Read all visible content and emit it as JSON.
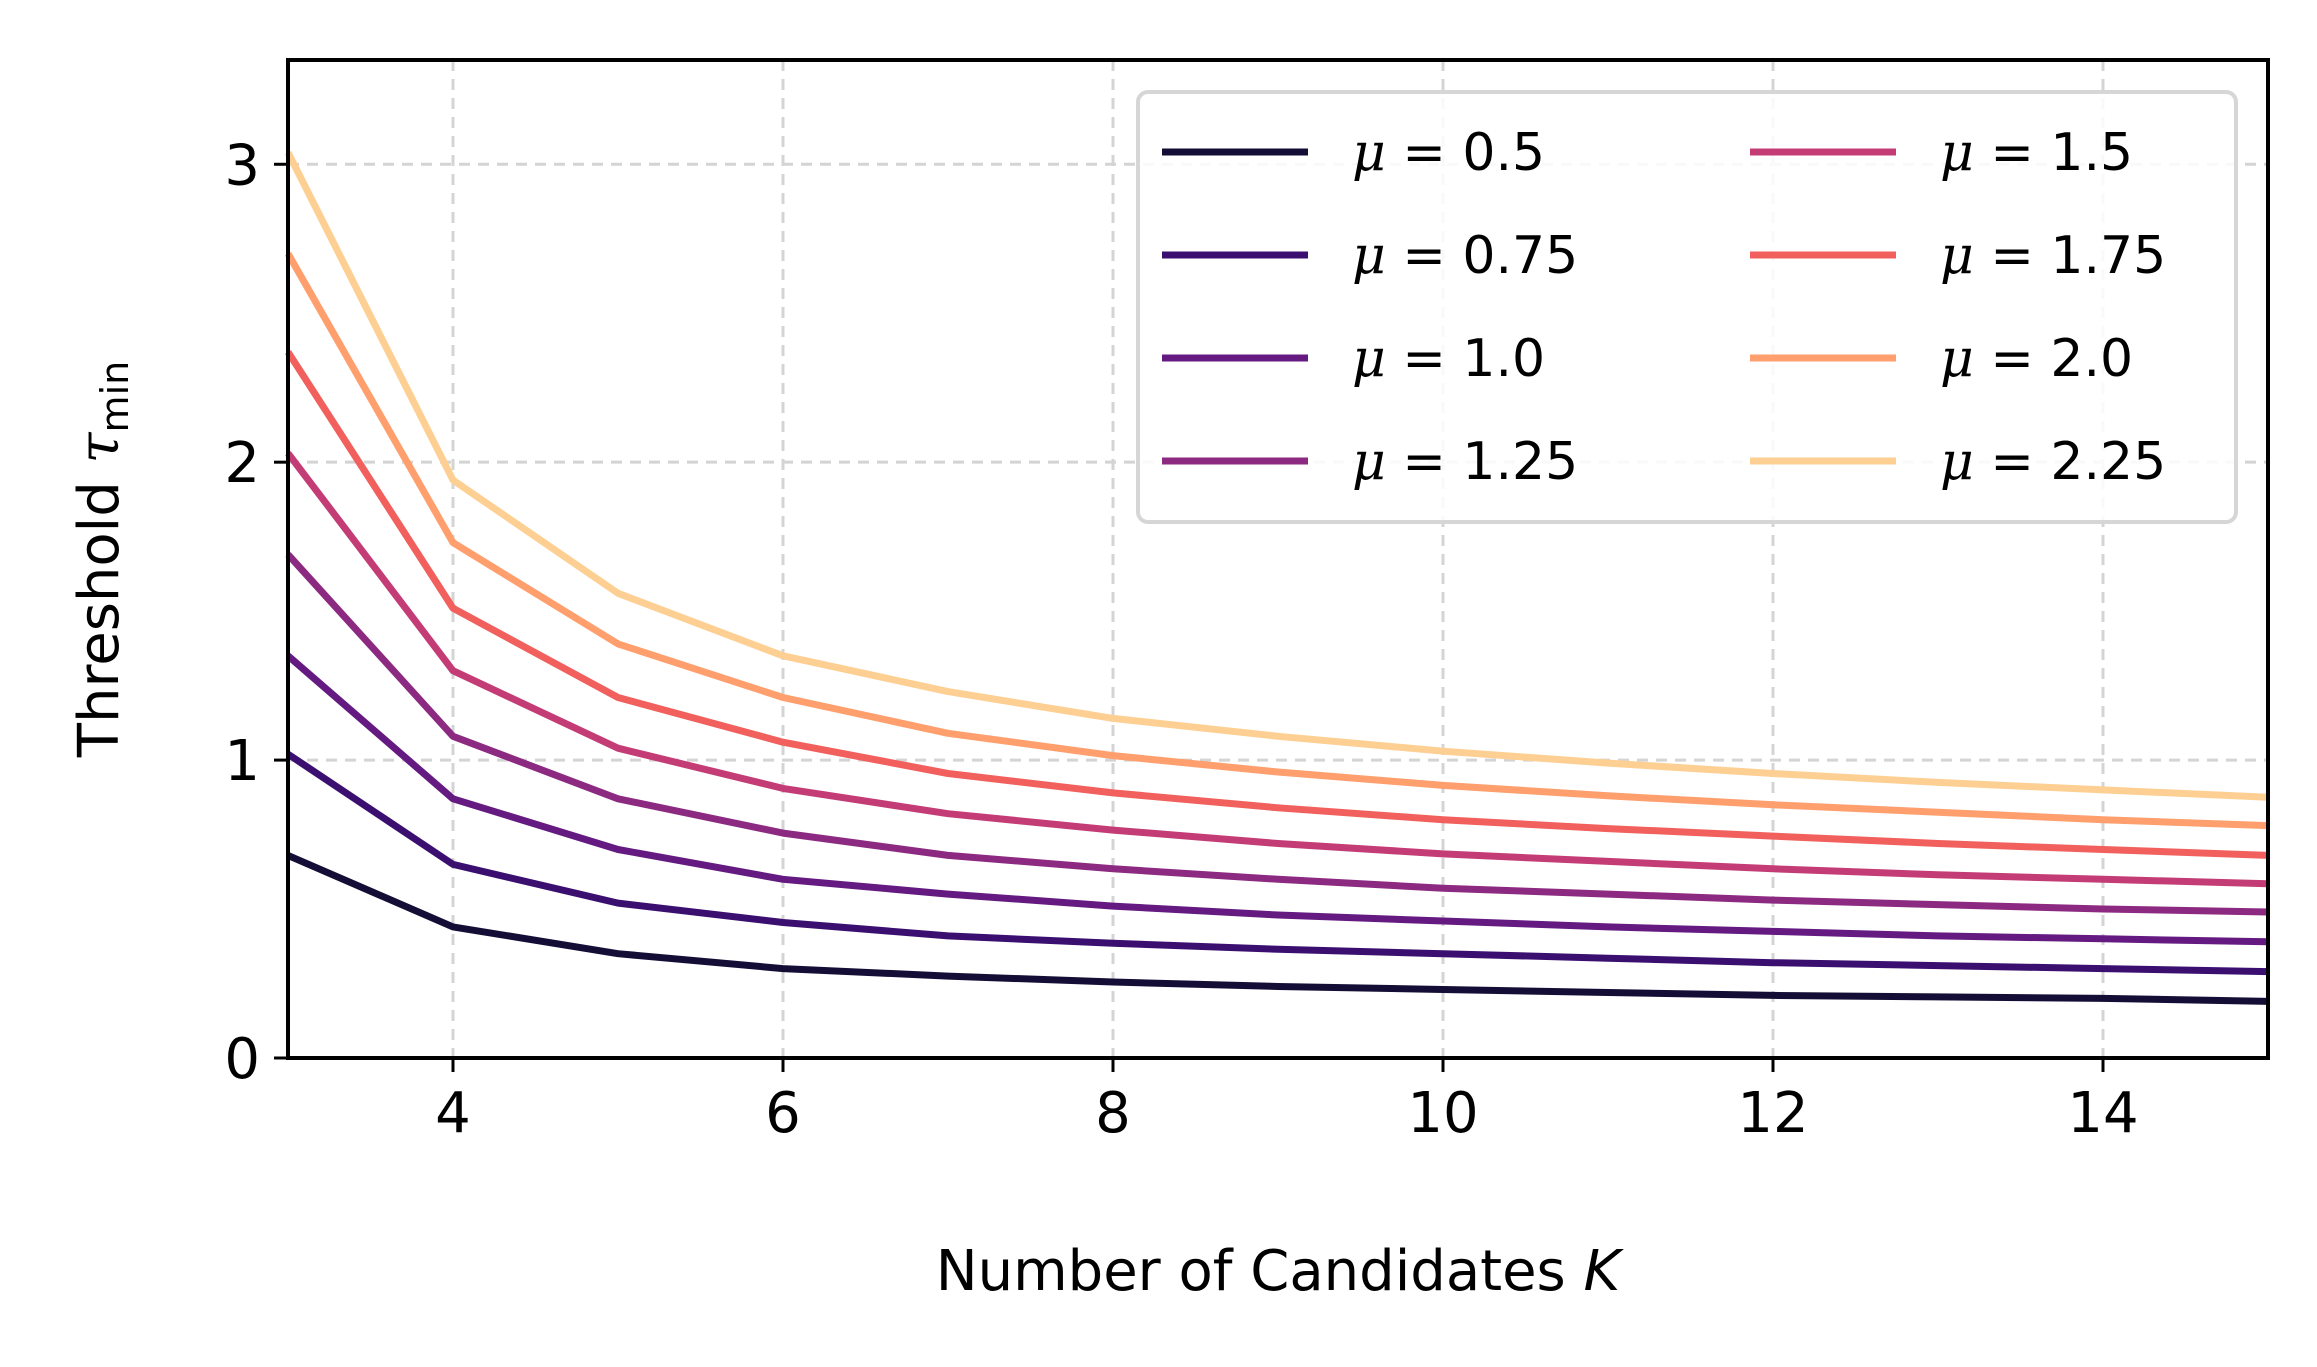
{
  "chart_data": {
    "type": "line",
    "xlabel_text": "Number of Candidates",
    "xlabel_var": "K",
    "ylabel_text": "Threshold",
    "ylabel_var": "τ",
    "ylabel_sub": "min",
    "xlim": [
      3,
      15
    ],
    "ylim": [
      0,
      3.35
    ],
    "xticks": [
      4,
      6,
      8,
      10,
      12,
      14
    ],
    "yticks": [
      0,
      1,
      2,
      3
    ],
    "grid": true,
    "legend_position": "top-right",
    "legend_columns": 2,
    "x": [
      3,
      4,
      5,
      6,
      7,
      8,
      9,
      10,
      11,
      12,
      13,
      14,
      15
    ],
    "series": [
      {
        "name": "μ = 0.5",
        "var": "μ",
        "value": "0.5",
        "color": "#140e36",
        "values": [
          0.68,
          0.44,
          0.35,
          0.3,
          0.275,
          0.255,
          0.24,
          0.23,
          0.22,
          0.21,
          0.205,
          0.2,
          0.19
        ]
      },
      {
        "name": "μ = 0.75",
        "var": "μ",
        "value": "0.75",
        "color": "#3b0f70",
        "values": [
          1.02,
          0.65,
          0.52,
          0.455,
          0.41,
          0.385,
          0.365,
          0.35,
          0.335,
          0.32,
          0.31,
          0.3,
          0.29
        ]
      },
      {
        "name": "μ = 1.0",
        "var": "μ",
        "value": "1.0",
        "color": "#641a80",
        "values": [
          1.35,
          0.87,
          0.7,
          0.6,
          0.55,
          0.51,
          0.48,
          0.46,
          0.44,
          0.425,
          0.41,
          0.4,
          0.39
        ]
      },
      {
        "name": "μ = 1.25",
        "var": "μ",
        "value": "1.25",
        "color": "#8c2981",
        "values": [
          1.69,
          1.08,
          0.87,
          0.755,
          0.68,
          0.635,
          0.6,
          0.57,
          0.55,
          0.53,
          0.515,
          0.5,
          0.49
        ]
      },
      {
        "name": "μ = 1.5",
        "var": "μ",
        "value": "1.5",
        "color": "#c43c75",
        "values": [
          2.03,
          1.3,
          1.04,
          0.905,
          0.82,
          0.765,
          0.72,
          0.685,
          0.66,
          0.635,
          0.615,
          0.6,
          0.585
        ]
      },
      {
        "name": "μ = 1.75",
        "var": "μ",
        "value": "1.75",
        "color": "#f1605d",
        "values": [
          2.37,
          1.51,
          1.21,
          1.06,
          0.955,
          0.89,
          0.84,
          0.8,
          0.77,
          0.745,
          0.72,
          0.7,
          0.68
        ]
      },
      {
        "name": "μ = 2.0",
        "var": "μ",
        "value": "2.0",
        "color": "#fe9f6d",
        "values": [
          2.7,
          1.73,
          1.39,
          1.21,
          1.09,
          1.015,
          0.96,
          0.915,
          0.88,
          0.85,
          0.825,
          0.8,
          0.78
        ]
      },
      {
        "name": "μ = 2.25",
        "var": "μ",
        "value": "2.25",
        "color": "#fecf92",
        "values": [
          3.04,
          1.94,
          1.56,
          1.35,
          1.23,
          1.14,
          1.08,
          1.03,
          0.99,
          0.955,
          0.925,
          0.9,
          0.875
        ]
      }
    ]
  }
}
